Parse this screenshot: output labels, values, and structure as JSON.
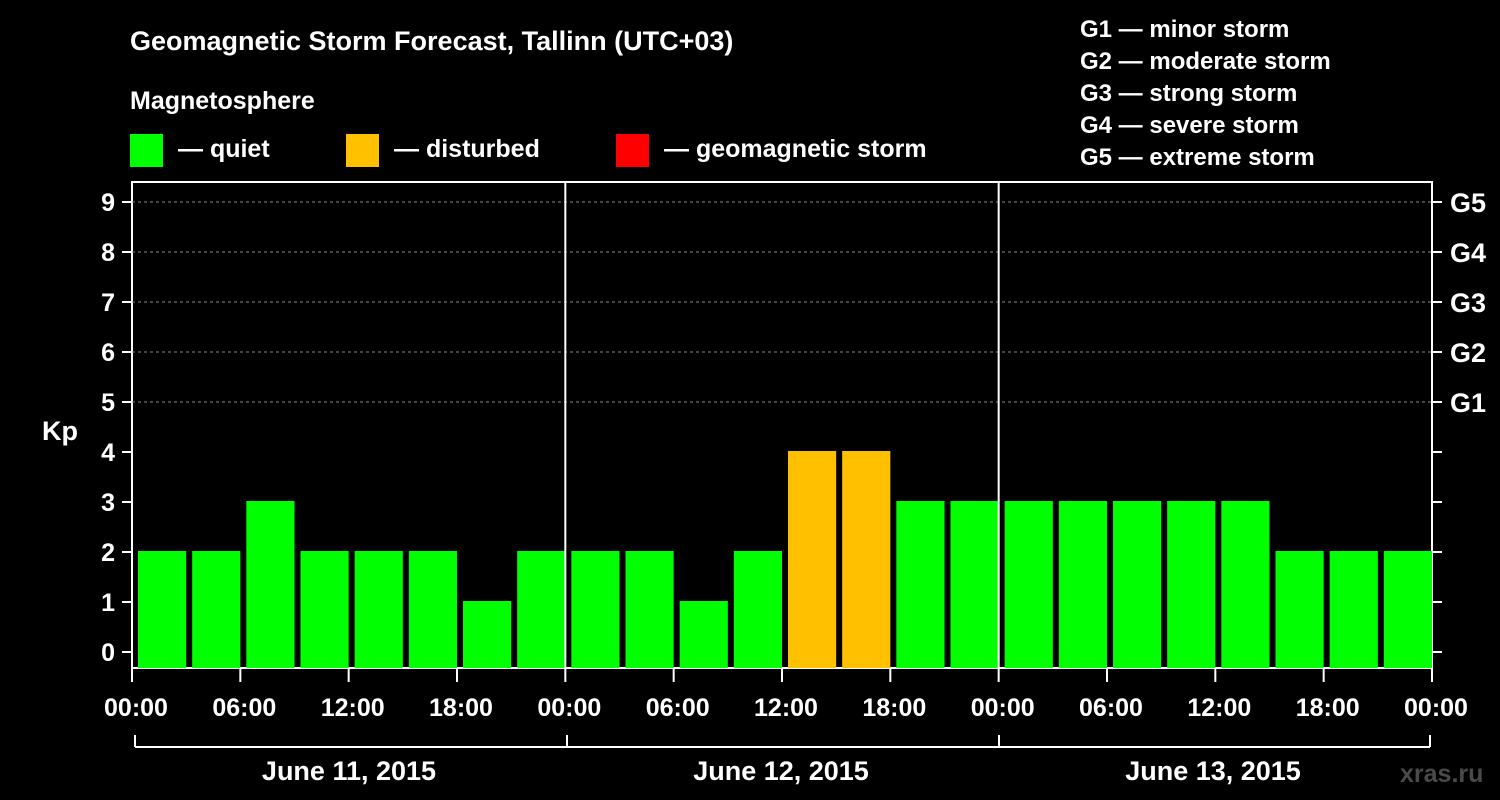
{
  "chart_data": {
    "type": "bar",
    "title": "Geomagnetic Storm Forecast, Tallinn (UTC+03)",
    "legend": {
      "heading": "Magnetosphere",
      "items": [
        {
          "label": "— quiet",
          "color": "#00ff00"
        },
        {
          "label": "— disturbed",
          "color": "#ffc000"
        },
        {
          "label": "— geomagnetic storm",
          "color": "#ff0000"
        }
      ]
    },
    "storm_scale": [
      "G1 — minor storm",
      "G2 — moderate storm",
      "G3 — strong storm",
      "G4 — severe storm",
      "G5 — extreme storm"
    ],
    "ylabel": "Kp",
    "ylim": [
      0,
      9
    ],
    "y_ticks": [
      "0",
      "1",
      "2",
      "3",
      "4",
      "5",
      "6",
      "7",
      "8",
      "9"
    ],
    "right_ticks": [
      {
        "kp": 5,
        "label": "G1"
      },
      {
        "kp": 6,
        "label": "G2"
      },
      {
        "kp": 7,
        "label": "G3"
      },
      {
        "kp": 8,
        "label": "G4"
      },
      {
        "kp": 9,
        "label": "G5"
      }
    ],
    "x_tick_labels": [
      "00:00",
      "06:00",
      "12:00",
      "18:00",
      "00:00",
      "06:00",
      "12:00",
      "18:00",
      "00:00",
      "06:00",
      "12:00",
      "18:00",
      "00:00"
    ],
    "days": [
      "June 11, 2015",
      "June 12, 2015",
      "June 13, 2015"
    ],
    "bar_interval_hours": 3,
    "values": [
      2,
      2,
      3,
      2,
      2,
      2,
      1,
      2,
      2,
      2,
      1,
      2,
      4,
      4,
      3,
      3,
      3,
      3,
      3,
      3,
      3,
      2,
      2,
      2
    ],
    "colors_by_level": {
      "quiet": "#00ff00",
      "disturbed": "#ffc000",
      "storm": "#ff0000"
    },
    "grid": "dashed horizontal lines at Kp 5-9",
    "watermark": "xras.ru"
  }
}
